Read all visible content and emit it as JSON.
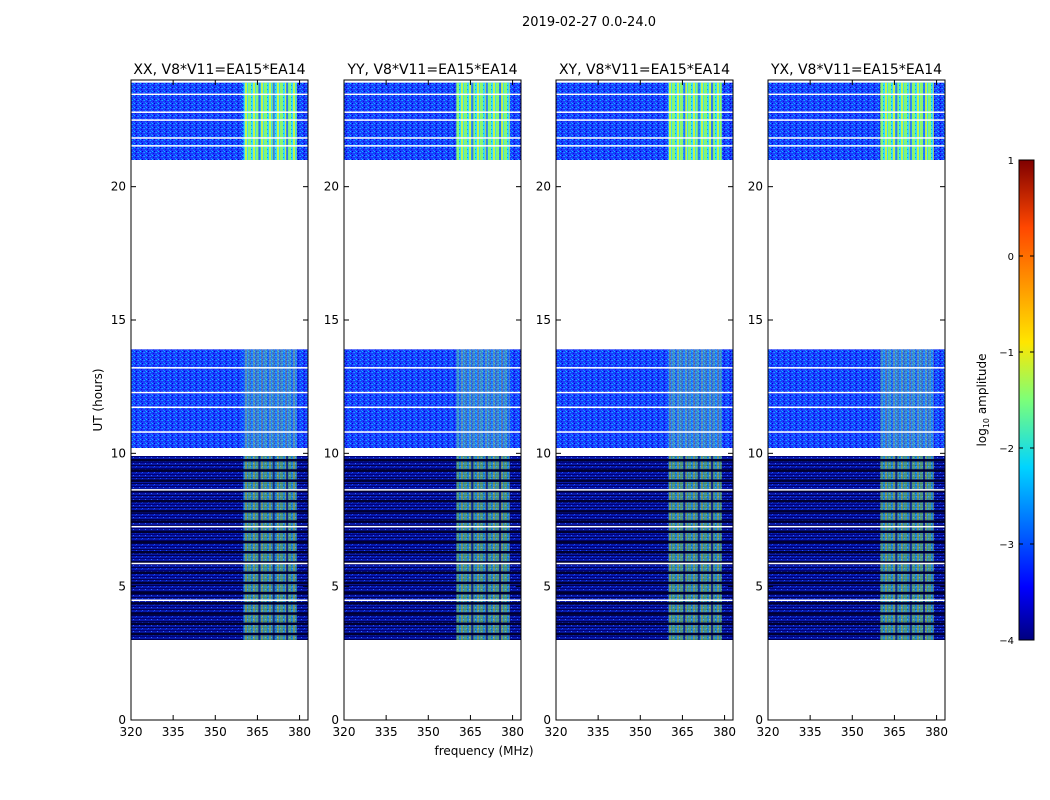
{
  "chart_data": {
    "type": "heatmap",
    "suptitle": "2019-02-27 0.0-24.0",
    "xlabel": "frequency (MHz)",
    "ylabel": "UT (hours)",
    "xlim": [
      320,
      383
    ],
    "ylim": [
      0,
      24
    ],
    "x_ticks": [
      320,
      335,
      350,
      365,
      380
    ],
    "y_ticks": [
      0,
      5,
      10,
      15,
      20
    ],
    "panels": [
      {
        "title": "XX, V8*V11=EA15*EA14"
      },
      {
        "title": "YY, V8*V11=EA15*EA14"
      },
      {
        "title": "XY, V8*V11=EA15*EA14"
      },
      {
        "title": "YX, V8*V11=EA15*EA14"
      }
    ],
    "data_blocks_hours": [
      {
        "start": 3.0,
        "end": 9.9,
        "style": "striped"
      },
      {
        "start": 10.2,
        "end": 13.9,
        "style": "noise"
      },
      {
        "start": 21.0,
        "end": 23.9,
        "style": "noise"
      }
    ],
    "gaps_hours": [
      [
        0,
        3.0
      ],
      [
        13.9,
        21.0
      ]
    ],
    "rfi_band_mhz": [
      360,
      379
    ],
    "colorbar": {
      "label": "log",
      "label_sub": "10",
      "label_rest": " amplitude",
      "range": [
        -4,
        1
      ],
      "ticks": [
        1,
        0,
        -1,
        -2,
        -3,
        -4
      ],
      "tick_labels": [
        "1",
        "0",
        "−1",
        "−2",
        "−3",
        "−4"
      ],
      "cmap_stops": [
        "#00007f",
        "#0000ff",
        "#00d4ff",
        "#7cff79",
        "#ffe600",
        "#ff4700",
        "#7f0000"
      ]
    }
  }
}
